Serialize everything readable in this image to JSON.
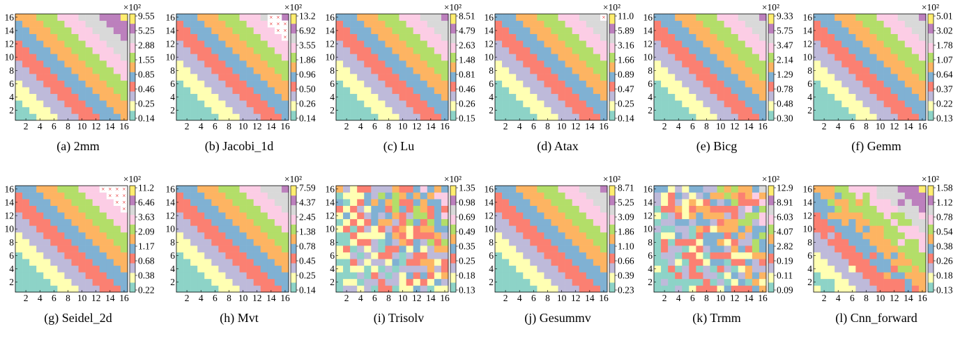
{
  "palette": [
    "#8dd3c7",
    "#ffffb3",
    "#bebada",
    "#fb8072",
    "#80b1d3",
    "#fdb462",
    "#b3de69",
    "#fccde5",
    "#d9d9d9",
    "#bc80bd",
    "#ffed6f"
  ],
  "chart_data": [
    {
      "type": "heatmap",
      "caption": "(a) 2mm",
      "x_ticks": [
        "2",
        "4",
        "6",
        "8",
        "10",
        "12",
        "14",
        "16"
      ],
      "y_ticks": [
        "2",
        "4",
        "6",
        "8",
        "10",
        "12",
        "14",
        "16"
      ],
      "multiplier": "×10²",
      "colorbar_ticks": [
        "9.55",
        "5.25",
        "2.88",
        "1.55",
        "0.85",
        "0.46",
        "0.25",
        "0.14"
      ],
      "grid_size": 16,
      "pattern": "diag",
      "offset": 1,
      "noise": 0.6,
      "xmarks": []
    },
    {
      "type": "heatmap",
      "caption": "(b) Jacobi_1d",
      "x_ticks": [
        "2",
        "4",
        "6",
        "8",
        "10",
        "12",
        "14",
        "16"
      ],
      "y_ticks": [
        "2",
        "4",
        "6",
        "8",
        "10",
        "12",
        "14",
        "16"
      ],
      "multiplier": "×10²",
      "colorbar_ticks": [
        "13.2",
        "6.92",
        "3.55",
        "1.86",
        "0.96",
        "0.50",
        "0.26",
        "0.14"
      ],
      "grid_size": 16,
      "pattern": "diag",
      "offset": 0,
      "noise": 0.5,
      "xmarks": [
        [
          14,
          16
        ],
        [
          15,
          16
        ],
        [
          16,
          15
        ],
        [
          14,
          15
        ],
        [
          15,
          15
        ],
        [
          16,
          14
        ],
        [
          15,
          14
        ],
        [
          16,
          13
        ]
      ]
    },
    {
      "type": "heatmap",
      "caption": "(c) Lu",
      "x_ticks": [
        "2",
        "4",
        "6",
        "8",
        "10",
        "12",
        "14",
        "16"
      ],
      "y_ticks": [
        "2",
        "4",
        "6",
        "8",
        "10",
        "12",
        "14",
        "16"
      ],
      "multiplier": "×10²",
      "colorbar_ticks": [
        "8.51",
        "4.79",
        "2.63",
        "1.48",
        "0.81",
        "0.46",
        "0.26",
        "0.15"
      ],
      "grid_size": 16,
      "pattern": "diag",
      "offset": 0,
      "noise": 0.4,
      "xmarks": []
    },
    {
      "type": "heatmap",
      "caption": "(d) Atax",
      "x_ticks": [
        "2",
        "4",
        "6",
        "8",
        "10",
        "12",
        "14",
        "16"
      ],
      "y_ticks": [
        "2",
        "4",
        "6",
        "8",
        "10",
        "12",
        "14",
        "16"
      ],
      "multiplier": "×10²",
      "colorbar_ticks": [
        "11.0",
        "5.89",
        "3.16",
        "1.66",
        "0.89",
        "0.47",
        "0.25",
        "0.14"
      ],
      "grid_size": 16,
      "pattern": "diag",
      "offset": 0,
      "noise": 0.4,
      "xmarks": [
        [
          16,
          16
        ]
      ]
    },
    {
      "type": "heatmap",
      "caption": "(e) Bicg",
      "x_ticks": [
        "2",
        "4",
        "6",
        "8",
        "10",
        "12",
        "14",
        "16"
      ],
      "y_ticks": [
        "2",
        "4",
        "6",
        "8",
        "10",
        "12",
        "14",
        "16"
      ],
      "multiplier": "×10²",
      "colorbar_ticks": [
        "9.33",
        "5.75",
        "3.47",
        "2.14",
        "1.29",
        "0.78",
        "0.48",
        "0.30"
      ],
      "grid_size": 16,
      "pattern": "diag",
      "offset": 0,
      "noise": 0.5,
      "xmarks": []
    },
    {
      "type": "heatmap",
      "caption": "(f) Gemm",
      "x_ticks": [
        "2",
        "4",
        "6",
        "8",
        "10",
        "12",
        "14",
        "16"
      ],
      "y_ticks": [
        "2",
        "4",
        "6",
        "8",
        "10",
        "12",
        "14",
        "16"
      ],
      "multiplier": "×10²",
      "colorbar_ticks": [
        "5.01",
        "3.02",
        "1.78",
        "1.07",
        "0.64",
        "0.37",
        "0.22",
        "0.13"
      ],
      "grid_size": 16,
      "pattern": "diag",
      "offset": 0,
      "noise": 0.7,
      "xmarks": []
    },
    {
      "type": "heatmap",
      "caption": "(g) Seidel_2d",
      "x_ticks": [
        "2",
        "4",
        "6",
        "8",
        "10",
        "12",
        "14",
        "16"
      ],
      "y_ticks": [
        "2",
        "4",
        "6",
        "8",
        "10",
        "12",
        "14",
        "16"
      ],
      "multiplier": "×10²",
      "colorbar_ticks": [
        "11.2",
        "6.46",
        "3.63",
        "2.09",
        "1.17",
        "0.68",
        "0.38",
        "0.22"
      ],
      "grid_size": 16,
      "pattern": "diag",
      "offset": 0,
      "noise": 0.4,
      "xmarks": [
        [
          13,
          16
        ],
        [
          14,
          16
        ],
        [
          15,
          16
        ],
        [
          16,
          16
        ],
        [
          14,
          15
        ],
        [
          15,
          15
        ],
        [
          16,
          15
        ],
        [
          15,
          14
        ],
        [
          16,
          14
        ],
        [
          16,
          13
        ]
      ]
    },
    {
      "type": "heatmap",
      "caption": "(h) Mvt",
      "x_ticks": [
        "2",
        "4",
        "6",
        "8",
        "10",
        "12",
        "14",
        "16"
      ],
      "y_ticks": [
        "2",
        "4",
        "6",
        "8",
        "10",
        "12",
        "14",
        "16"
      ],
      "multiplier": "×10²",
      "colorbar_ticks": [
        "7.59",
        "4.37",
        "2.45",
        "1.38",
        "0.78",
        "0.45",
        "0.25",
        "0.14"
      ],
      "grid_size": 16,
      "pattern": "diag",
      "offset": 0,
      "noise": 0.4,
      "xmarks": []
    },
    {
      "type": "heatmap",
      "caption": "(i) Trisolv",
      "x_ticks": [
        "2",
        "4",
        "6",
        "8",
        "10",
        "12",
        "14",
        "16"
      ],
      "y_ticks": [
        "2",
        "4",
        "6",
        "8",
        "10",
        "12",
        "14",
        "16"
      ],
      "multiplier": "×10²",
      "colorbar_ticks": [
        "1.35",
        "0.98",
        "0.69",
        "0.49",
        "0.35",
        "0.25",
        "0.18",
        "0.13"
      ],
      "grid_size": 16,
      "pattern": "noisy",
      "offset": 0,
      "noise": 2.0,
      "xmarks": []
    },
    {
      "type": "heatmap",
      "caption": "(j) Gesummv",
      "x_ticks": [
        "2",
        "4",
        "6",
        "8",
        "10",
        "12",
        "14",
        "16"
      ],
      "y_ticks": [
        "2",
        "4",
        "6",
        "8",
        "10",
        "12",
        "14",
        "16"
      ],
      "multiplier": "×10²",
      "colorbar_ticks": [
        "8.71",
        "5.25",
        "3.09",
        "1.86",
        "1.10",
        "0.66",
        "0.39",
        "0.23"
      ],
      "grid_size": 16,
      "pattern": "diag",
      "offset": 0,
      "noise": 0.4,
      "xmarks": []
    },
    {
      "type": "heatmap",
      "caption": "(k) Trmm",
      "x_ticks": [
        "2",
        "4",
        "6",
        "8",
        "10",
        "12",
        "14",
        "16"
      ],
      "y_ticks": [
        "2",
        "4",
        "6",
        "8",
        "10",
        "12",
        "14",
        "16"
      ],
      "multiplier": "×10²",
      "colorbar_ticks": [
        "12.9",
        "8.91",
        "6.03",
        "4.07",
        "2.82",
        "0.19",
        "0.11",
        "0.09"
      ],
      "grid_size": 16,
      "pattern": "noisy",
      "offset": 0,
      "noise": 2.5,
      "xmarks": []
    },
    {
      "type": "heatmap",
      "caption": "(l) Cnn_forward",
      "x_ticks": [
        "2",
        "4",
        "6",
        "8",
        "10",
        "12",
        "14",
        "16"
      ],
      "y_ticks": [
        "2",
        "4",
        "6",
        "8",
        "10",
        "12",
        "14",
        "16"
      ],
      "multiplier": "×10²",
      "colorbar_ticks": [
        "1.58",
        "1.12",
        "0.78",
        "0.54",
        "0.38",
        "0.26",
        "0.18",
        "0.13"
      ],
      "grid_size": 16,
      "pattern": "diag",
      "offset": 1,
      "noise": 1.2,
      "xmarks": []
    }
  ]
}
